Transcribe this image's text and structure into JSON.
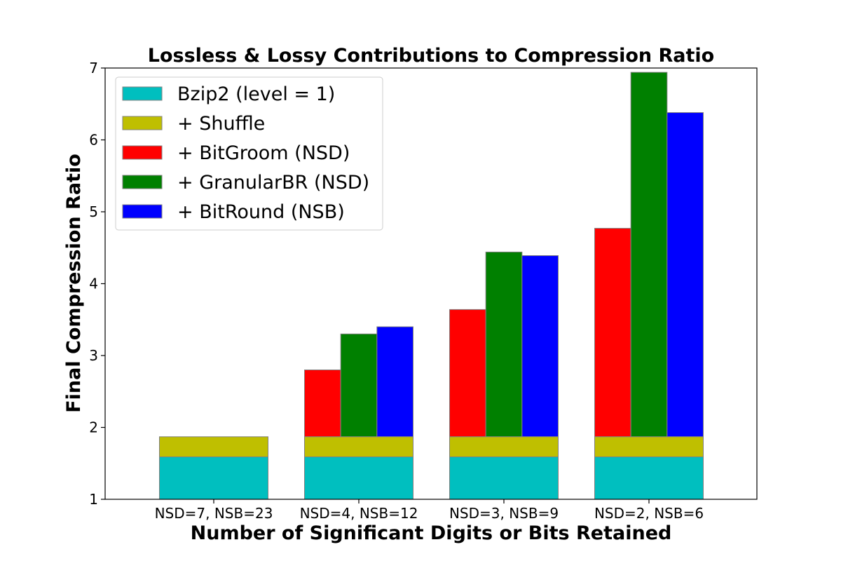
{
  "chart_data": {
    "type": "bar",
    "title": "Lossless & Lossy Contributions to Compression Ratio",
    "xlabel": "Number of Significant Digits or Bits Retained",
    "ylabel": "Final Compression Ratio",
    "categories": [
      "NSD=7, NSB=23",
      "NSD=4, NSB=12",
      "NSD=3, NSB=9",
      "NSD=2, NSB=6"
    ],
    "ylim": [
      1,
      7
    ],
    "yticks": [
      "1",
      "2",
      "3",
      "4",
      "5",
      "6",
      "7"
    ],
    "grid": false,
    "legend_position": "top-left",
    "baseline": {
      "lossless": [
        {
          "name": "Bzip2 (level = 1)",
          "color": "#00bfbf",
          "value": 1.59
        },
        {
          "name": "+ Shuffle",
          "color": "#bfbf00",
          "value": 1.87
        }
      ]
    },
    "series": [
      {
        "name": "+ BitGroom (NSD)",
        "color": "#ff0000",
        "values": [
          null,
          2.8,
          3.64,
          4.77
        ]
      },
      {
        "name": "+ GranularBR (NSD)",
        "color": "#008000",
        "values": [
          null,
          3.3,
          4.44,
          6.94
        ]
      },
      {
        "name": "+ BitRound (NSB)",
        "color": "#0000ff",
        "values": [
          null,
          3.4,
          4.39,
          6.38
        ]
      }
    ]
  }
}
